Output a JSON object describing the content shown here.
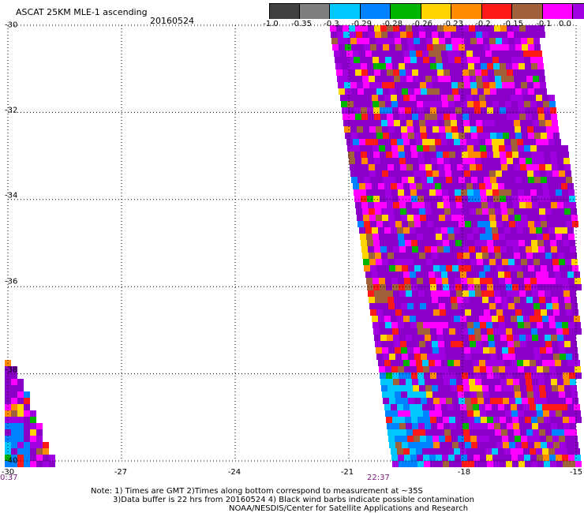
{
  "header": {
    "title": "ASCAT 25KM MLE-1 ascending",
    "date": "20160524"
  },
  "colorbar": {
    "colors": [
      "#404040",
      "#7f7f7f",
      "#00c8ff",
      "#0082ff",
      "#00b400",
      "#ffd400",
      "#ff8c00",
      "#ff1a1a",
      "#a0603a",
      "#ff00ff",
      "#a000e0",
      "#8a00c8"
    ],
    "tick_labels": [
      "-1.0",
      "-0.35",
      "-0.3",
      "-0.29",
      "-0.28",
      "-0.26",
      "-0.23",
      "-0.2",
      "-0.15",
      "-0.1",
      "0.0"
    ]
  },
  "axes": {
    "lat_labels": [
      "-30",
      "-32",
      "-34",
      "-36",
      "-38",
      "-40"
    ],
    "lon_labels": [
      "-30",
      "-27",
      "-24",
      "-21",
      "-18",
      "-15"
    ],
    "time_labels": [
      "0:37",
      "22:37"
    ]
  },
  "notes": {
    "line1": "Note: 1) Times are GMT 2)Times along bottom correspond to measurement at ~35S",
    "line2": "3)Data buffer is 22 hrs from 20160524 4) Black wind barbs indicate possible contamination",
    "line3": "NOAA/NESDIS/Center for Satellite Applications and Research"
  },
  "map_data": {
    "lat_range": [
      -40,
      -30
    ],
    "lon_range": [
      -30,
      -15
    ],
    "gridlines": "dotted"
  }
}
